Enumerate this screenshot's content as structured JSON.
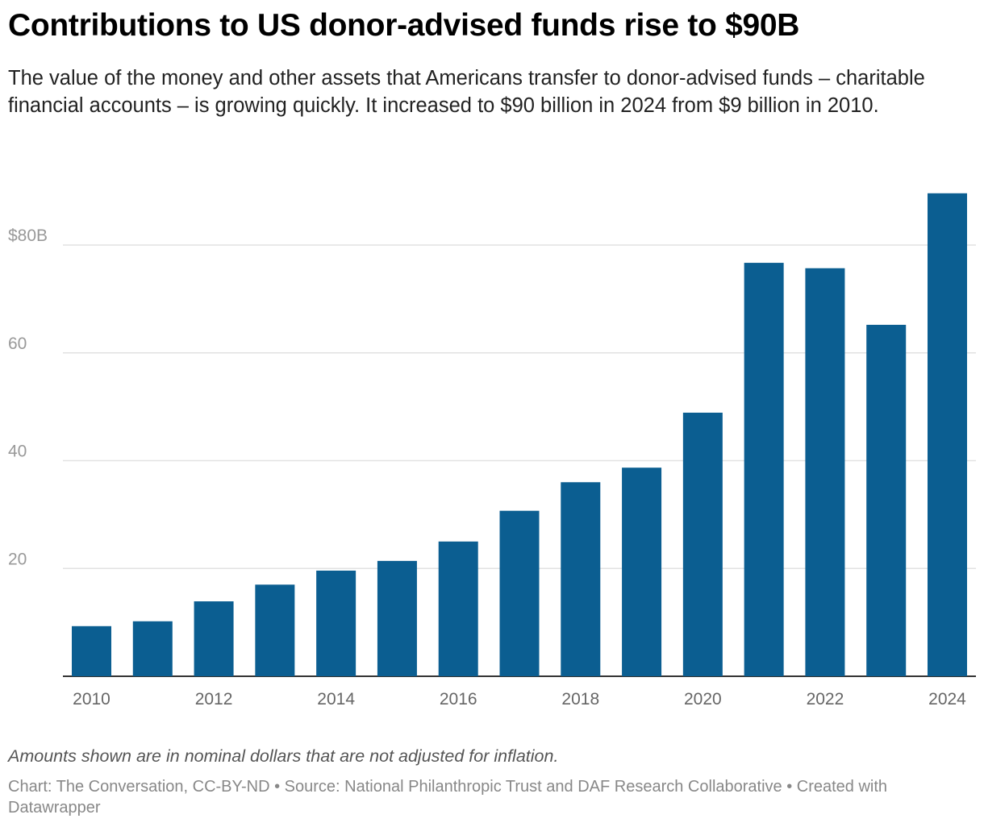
{
  "title": "Contributions to US donor-advised funds rise to $90B",
  "subtitle": "The value of the money and other assets that Americans transfer to donor-advised funds – charitable financial accounts – is growing quickly. It increased to $90 billion in 2024 from $9 billion in 2010.",
  "note": "Amounts shown are in nominal dollars that are not adjusted for inflation.",
  "footer": "Chart: The Conversation, CC-BY-ND • Source: National Philanthropic Trust and DAF Research Collaborative • Created with Datawrapper",
  "chart_data": {
    "type": "bar",
    "categories": [
      "2010",
      "2011",
      "2012",
      "2013",
      "2014",
      "2015",
      "2016",
      "2017",
      "2018",
      "2019",
      "2020",
      "2021",
      "2022",
      "2023",
      "2024"
    ],
    "values": [
      9.3,
      10.2,
      13.9,
      17.0,
      19.6,
      21.4,
      25.0,
      30.7,
      36.0,
      38.7,
      48.9,
      76.7,
      75.7,
      65.2,
      89.6
    ],
    "unit": "billion USD",
    "ylim": [
      0,
      90
    ],
    "yticks": [
      20,
      40,
      60,
      80
    ],
    "ytick_labels": [
      "20",
      "40",
      "60",
      "$80B"
    ],
    "xtick_labels": [
      "2010",
      "2012",
      "2014",
      "2016",
      "2018",
      "2020",
      "2022",
      "2024"
    ],
    "grid": true,
    "bar_color": "#0b5e91",
    "xlabel": "",
    "ylabel": ""
  }
}
